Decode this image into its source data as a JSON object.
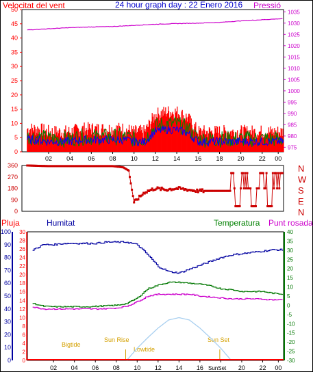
{
  "colors": {
    "frame": "#000000",
    "title": "#0000ff",
    "wind": "#ff0000",
    "wind_avg": "#0000ff",
    "wind_gust2": "#008000",
    "pressure": "#cc00cc",
    "direction": "#cc0000",
    "rain": "#ff0000",
    "humidity": "#0000a0",
    "temperature": "#007700",
    "dewpoint": "#cc00cc",
    "solar": "#a8cff0",
    "sunlabel": "#d4a000",
    "label_red": "#ff0000",
    "label_green": "#008000",
    "label_blue": "#0000a0"
  },
  "header": {
    "title": "24 hour graph day : 22 Enero 2016",
    "wind_label": "Velocitat del vent",
    "pressure_label": "Pressió"
  },
  "lower_header": {
    "rain_label": "Pluja",
    "humidity_label": "Humitat",
    "temperature_label": "Temperatura",
    "dewpoint_label": "Punt rosada"
  },
  "compass": [
    "N",
    "W",
    "S",
    "E",
    "N"
  ],
  "sun_labels": {
    "sunrise": "Sun Rise",
    "sunset": "Sun Set",
    "bigtide": "Bigtide",
    "lowtide": "Lowtide",
    "sun_bottom": "SunSet"
  },
  "chart_data": [
    {
      "type": "line",
      "x_tick_labels": [
        "02",
        "04",
        "06",
        "08",
        "10",
        "12",
        "14",
        "16",
        "18",
        "20",
        "22",
        "00"
      ],
      "wind_axis": {
        "ticks": [
          0,
          5,
          10,
          15,
          20,
          25,
          30,
          35,
          40,
          45,
          50
        ],
        "ylim": [
          0,
          50
        ]
      },
      "pressure_axis": {
        "ticks": [
          975,
          980,
          985,
          990,
          995,
          1000,
          1005,
          1010,
          1015,
          1020,
          1025,
          1030,
          1035
        ],
        "ylim": [
          973,
          1036
        ]
      },
      "series": [
        {
          "name": "Velocitat del vent",
          "x": [
            0,
            1,
            2,
            3,
            4,
            5,
            6,
            7,
            8,
            9,
            10,
            11,
            12,
            13,
            14,
            15,
            16,
            17,
            18,
            19,
            20,
            21,
            22,
            23,
            24
          ],
          "values": [
            7,
            7,
            6,
            6,
            6,
            7,
            7,
            7,
            7,
            7,
            6,
            6,
            12,
            13,
            13,
            11,
            6,
            6,
            6,
            6,
            6,
            6,
            6,
            6,
            6
          ]
        },
        {
          "name": "Pressió",
          "x": [
            0,
            2,
            4,
            6,
            8,
            10,
            12,
            14,
            16,
            18,
            20,
            22,
            24
          ],
          "values": [
            1027,
            1027.5,
            1028,
            1028.3,
            1028.5,
            1029,
            1029.5,
            1029.8,
            1030,
            1030.3,
            1031,
            1031.5,
            1032
          ]
        }
      ]
    },
    {
      "type": "line",
      "x_tick_labels": [
        "02",
        "04",
        "06",
        "08",
        "10",
        "12",
        "14",
        "16",
        "18",
        "20",
        "22",
        "00"
      ],
      "y_tick_labels": [
        "360",
        "270",
        "180",
        "90",
        "0"
      ],
      "ylim": [
        0,
        360
      ],
      "series": [
        {
          "name": "direction",
          "x": [
            0,
            2,
            4,
            6,
            8,
            9,
            9.5,
            10,
            11,
            12,
            13,
            14,
            15,
            16,
            17,
            18,
            19,
            20,
            21,
            22,
            23,
            24
          ],
          "values": [
            360,
            355,
            355,
            355,
            355,
            345,
            320,
            70,
            150,
            180,
            170,
            180,
            170,
            160,
            160,
            160,
            160,
            40,
            260,
            300,
            300,
            340
          ]
        }
      ]
    },
    {
      "type": "line",
      "x_tick_labels": [
        "02",
        "04",
        "06",
        "08",
        "10",
        "12",
        "14",
        "16",
        "18",
        "20",
        "22",
        "00"
      ],
      "rain_axis": {
        "ticks": [
          0,
          2,
          4,
          6,
          8,
          10,
          12,
          14,
          16,
          18,
          20,
          22,
          24,
          26,
          28,
          30
        ],
        "ylim": [
          0,
          30
        ]
      },
      "humidity_axis": {
        "ticks": [
          0,
          10,
          20,
          30,
          40,
          50,
          60,
          70,
          80,
          90,
          100
        ],
        "ylim": [
          0,
          100
        ]
      },
      "temperature_axis": {
        "ticks": [
          -30,
          -25,
          -20,
          -15,
          -10,
          -5,
          0,
          5,
          10,
          15,
          20,
          25,
          30,
          35,
          40
        ],
        "ylim": [
          -30,
          40
        ]
      },
      "series": [
        {
          "name": "Humitat",
          "x": [
            0,
            0.5,
            1,
            2,
            3,
            4,
            5,
            6,
            7,
            8,
            9,
            10,
            11,
            12,
            13,
            14,
            15,
            16,
            17,
            18,
            19,
            20,
            21,
            22,
            23,
            24
          ],
          "values": [
            86,
            88,
            90,
            90,
            91,
            91,
            91,
            91,
            92,
            92,
            92,
            90,
            82,
            73,
            69,
            68,
            71,
            74,
            77,
            80,
            82,
            83,
            84,
            85,
            86,
            86
          ]
        },
        {
          "name": "Temperatura",
          "x": [
            0,
            1,
            2,
            3,
            4,
            5,
            6,
            7,
            8,
            9,
            10,
            11,
            12,
            13,
            14,
            15,
            16,
            17,
            18,
            19,
            20,
            21,
            22,
            23,
            24
          ],
          "values": [
            1,
            -0.5,
            -0.8,
            -0.8,
            -0.8,
            -0.8,
            -0.6,
            -0.3,
            0,
            1,
            4,
            9,
            11,
            12.5,
            12.5,
            12,
            11.5,
            10.5,
            9,
            8.5,
            7.5,
            7.5,
            7.5,
            6.5,
            6
          ]
        },
        {
          "name": "Punt rosada",
          "x": [
            0,
            1,
            2,
            3,
            4,
            5,
            6,
            7,
            8,
            9,
            10,
            11,
            12,
            13,
            14,
            15,
            16,
            17,
            18,
            19,
            20,
            21,
            22,
            23,
            24
          ],
          "values": [
            -1,
            -2,
            -2,
            -2,
            -2,
            -2,
            -2,
            -1.8,
            -1.5,
            -0.5,
            2,
            5,
            6,
            6,
            6,
            6,
            5,
            4.5,
            4,
            3.5,
            3.5,
            3.5,
            3.3,
            3,
            3
          ]
        },
        {
          "name": "Pluja",
          "x": [
            0,
            24
          ],
          "values": [
            0,
            0
          ]
        },
        {
          "name": "solar",
          "x": [
            9,
            10,
            11,
            12,
            13,
            14,
            15,
            16,
            17,
            18,
            19
          ],
          "values": [
            0,
            15,
            28,
            40,
            50,
            53,
            50,
            40,
            28,
            15,
            0
          ]
        }
      ]
    }
  ]
}
